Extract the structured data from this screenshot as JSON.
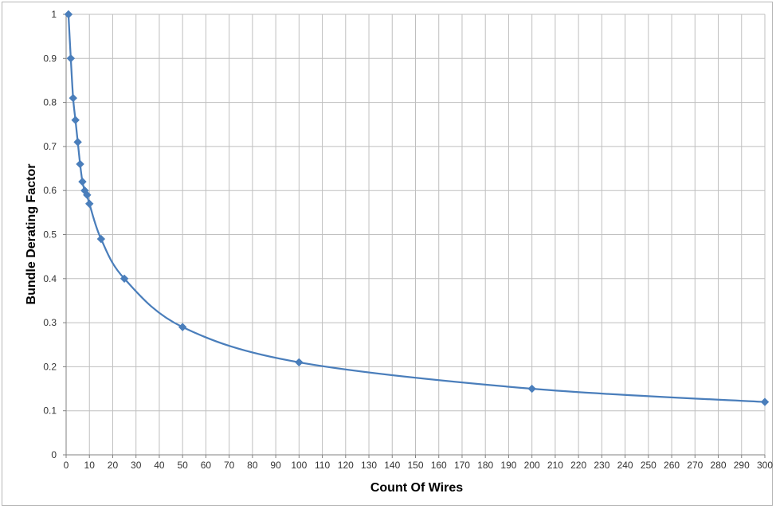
{
  "chart_data": {
    "type": "line",
    "title": "",
    "xlabel": "Count Of Wires",
    "ylabel": "Bundle Derating Factor",
    "xlim": [
      0,
      300
    ],
    "ylim": [
      0,
      1
    ],
    "xticks": [
      0,
      10,
      20,
      30,
      40,
      50,
      60,
      70,
      80,
      90,
      100,
      110,
      120,
      130,
      140,
      150,
      160,
      170,
      180,
      190,
      200,
      210,
      220,
      230,
      240,
      250,
      260,
      270,
      280,
      290,
      300
    ],
    "yticks": [
      0,
      0.1,
      0.2,
      0.3,
      0.4,
      0.5,
      0.6,
      0.7,
      0.8,
      0.9,
      1
    ],
    "grid": true,
    "legend": "none",
    "series": [
      {
        "color": "#4a7ebb",
        "marker": "diamond",
        "smooth": true,
        "x": [
          1,
          2,
          3,
          4,
          5,
          6,
          7,
          8,
          9,
          10,
          15,
          25,
          50,
          100,
          200,
          300
        ],
        "y": [
          1.0,
          0.9,
          0.81,
          0.76,
          0.71,
          0.66,
          0.62,
          0.6,
          0.59,
          0.57,
          0.49,
          0.4,
          0.29,
          0.21,
          0.15,
          0.12
        ]
      }
    ]
  }
}
